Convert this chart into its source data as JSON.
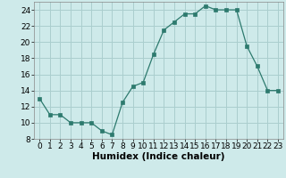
{
  "x": [
    0,
    1,
    2,
    3,
    4,
    5,
    6,
    7,
    8,
    9,
    10,
    11,
    12,
    13,
    14,
    15,
    16,
    17,
    18,
    19,
    20,
    21,
    22,
    23
  ],
  "y": [
    13,
    11,
    11,
    10,
    10,
    10,
    9,
    8.5,
    12.5,
    14.5,
    15,
    18.5,
    21.5,
    22.5,
    23.5,
    23.5,
    24.5,
    24,
    24,
    24,
    19.5,
    17,
    14,
    14
  ],
  "line_color": "#2d7a6e",
  "marker": "s",
  "marker_size": 2.5,
  "bg_color": "#ceeaea",
  "grid_color": "#aacece",
  "xlabel": "Humidex (Indice chaleur)",
  "xlim": [
    -0.5,
    23.5
  ],
  "ylim": [
    8,
    25
  ],
  "yticks": [
    8,
    10,
    12,
    14,
    16,
    18,
    20,
    22,
    24
  ],
  "xticks": [
    0,
    1,
    2,
    3,
    4,
    5,
    6,
    7,
    8,
    9,
    10,
    11,
    12,
    13,
    14,
    15,
    16,
    17,
    18,
    19,
    20,
    21,
    22,
    23
  ],
  "xlabel_fontsize": 7.5,
  "tick_fontsize": 6.5
}
